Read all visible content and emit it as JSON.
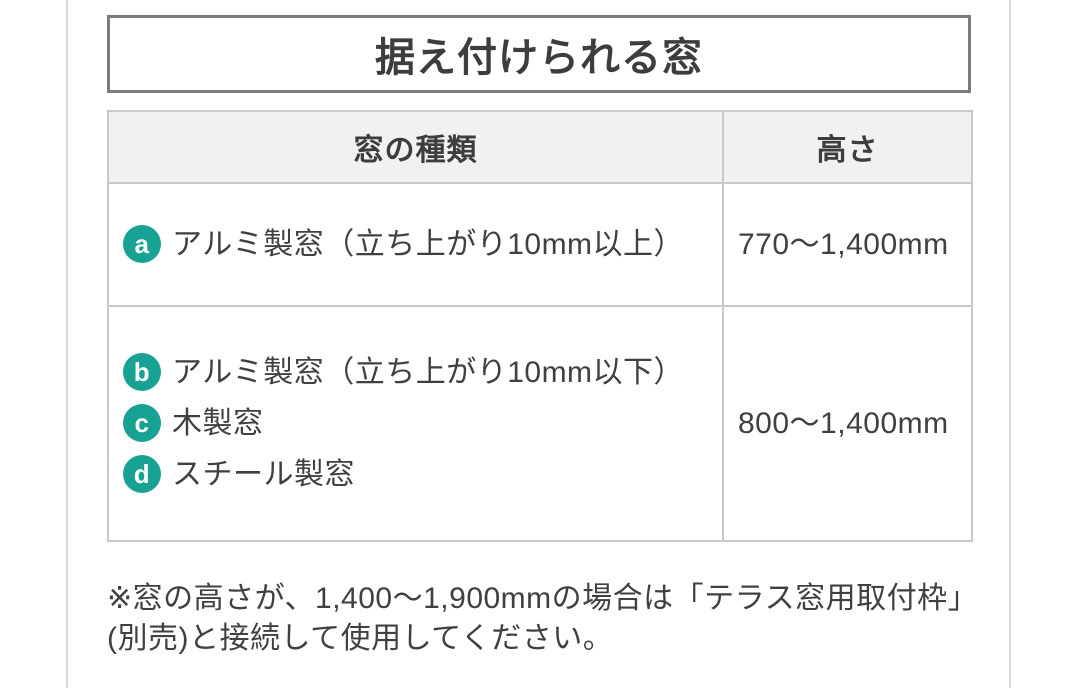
{
  "section": {
    "title": "据え付けられる窓"
  },
  "table": {
    "headers": [
      "窓の種類",
      "高さ"
    ],
    "rows": [
      {
        "items": [
          {
            "badge": "a",
            "text": "アルミ製窓（立ち上がり10mm以上）"
          }
        ],
        "height": "770〜1,400mm"
      },
      {
        "items": [
          {
            "badge": "b",
            "text": "アルミ製窓（立ち上がり10mm以下）"
          },
          {
            "badge": "c",
            "text": "木製窓"
          },
          {
            "badge": "d",
            "text": "スチール製窓"
          }
        ],
        "height": "800〜1,400mm"
      }
    ]
  },
  "note": "※窓の高さが、1,400〜1,900mmの場合は「テラス窓用取付枠」(別売)と接続して使用してください。",
  "colors": {
    "badge_teal": "#17a294",
    "header_background": "#f0f1f3",
    "table_border": "#c9c9c9",
    "title_border": "#7b7b7b",
    "text": "#404040",
    "page_rule": "#d9d9d9"
  }
}
